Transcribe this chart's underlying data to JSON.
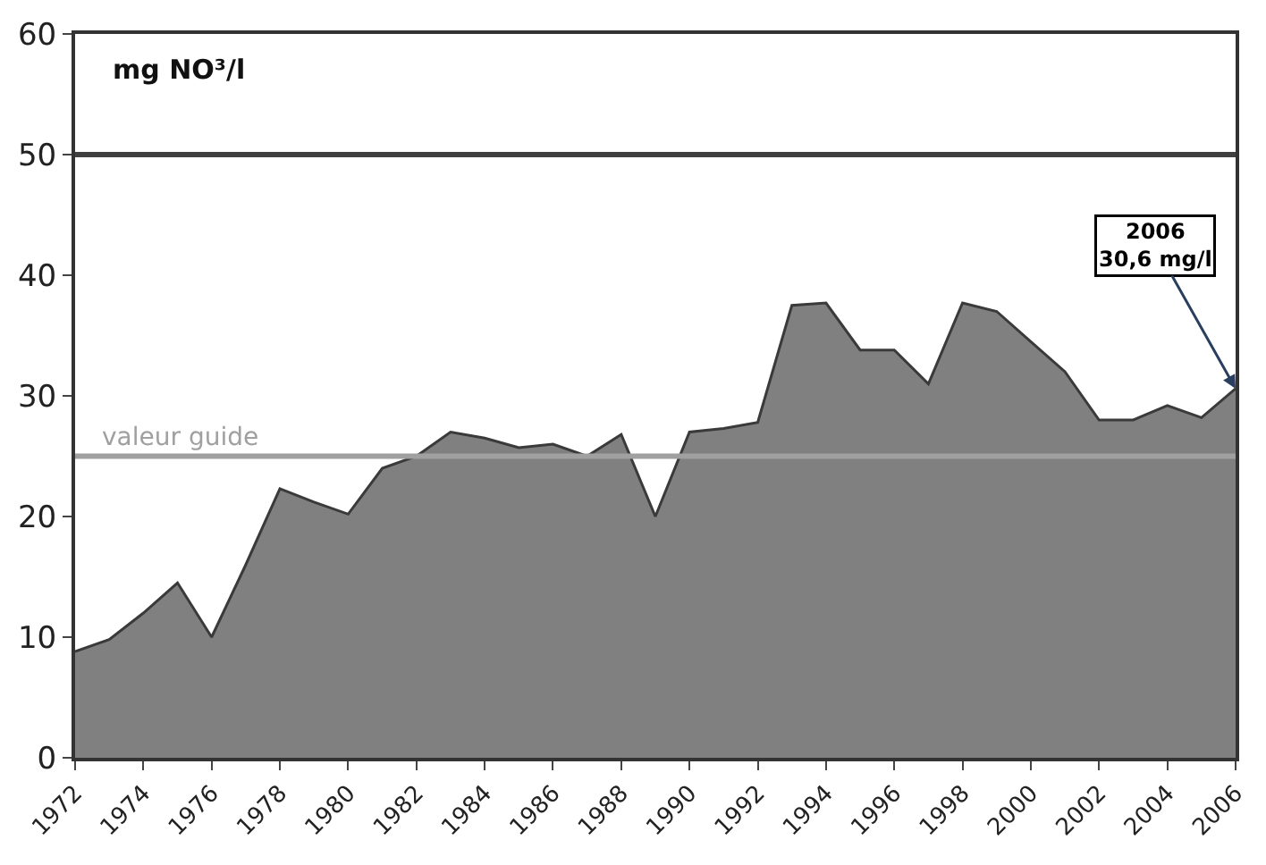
{
  "chart_data": {
    "type": "area",
    "ylabel": "mg NO³/l",
    "x": [
      1972,
      1973,
      1974,
      1975,
      1976,
      1977,
      1978,
      1979,
      1980,
      1981,
      1982,
      1983,
      1984,
      1985,
      1986,
      1987,
      1988,
      1989,
      1990,
      1991,
      1992,
      1993,
      1994,
      1995,
      1996,
      1997,
      1998,
      1999,
      2000,
      2001,
      2002,
      2003,
      2004,
      2005,
      2006
    ],
    "series": [
      {
        "color": "#808080",
        "values": [
          8.8,
          9.8,
          12,
          14.5,
          10,
          16,
          22.3,
          21.2,
          20.2,
          24,
          25,
          27,
          26.5,
          25.7,
          26,
          25,
          26.8,
          20,
          27,
          27.3,
          27.8,
          37.5,
          37.7,
          33.8,
          33.8,
          31,
          37.7,
          37,
          34.5,
          32,
          28,
          28,
          29.2,
          28.2,
          30.6
        ]
      }
    ],
    "xlim": [
      1972,
      2006
    ],
    "xticks": [
      1972,
      1974,
      1976,
      1978,
      1980,
      1982,
      1984,
      1986,
      1988,
      1990,
      1992,
      1994,
      1996,
      1998,
      2000,
      2002,
      2004,
      2006
    ],
    "ylim": [
      0,
      60
    ],
    "yticks": [
      0,
      10,
      20,
      30,
      40,
      50,
      60
    ],
    "ref_lines": [
      {
        "axis": "y",
        "value": 50,
        "color": "#404040"
      },
      {
        "axis": "y",
        "value": 25,
        "label": "valeur guide",
        "color": "#a0a0a0"
      }
    ],
    "annotations": [
      {
        "text": "2006\n30,6 mg/l",
        "x": 2006,
        "y": 30.6
      }
    ]
  }
}
